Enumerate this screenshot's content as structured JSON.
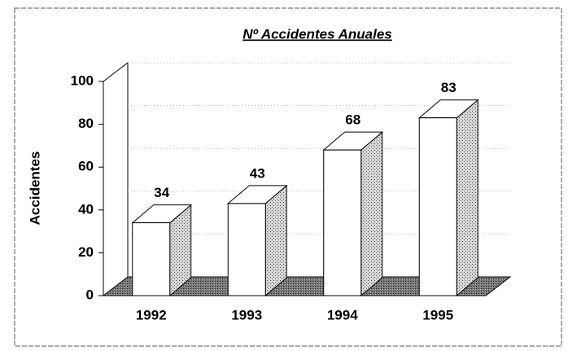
{
  "chart_data": {
    "type": "bar3d",
    "title": "Nº Accidentes Anuales",
    "y_label": "Accidentes",
    "categories": [
      "1992",
      "1993",
      "1994",
      "1995"
    ],
    "values": [
      34,
      43,
      68,
      83
    ],
    "color": "#ffffff",
    "ylim": [
      0,
      100
    ],
    "yticks": [
      0,
      20,
      40,
      60,
      80,
      100
    ],
    "grid": true
  }
}
